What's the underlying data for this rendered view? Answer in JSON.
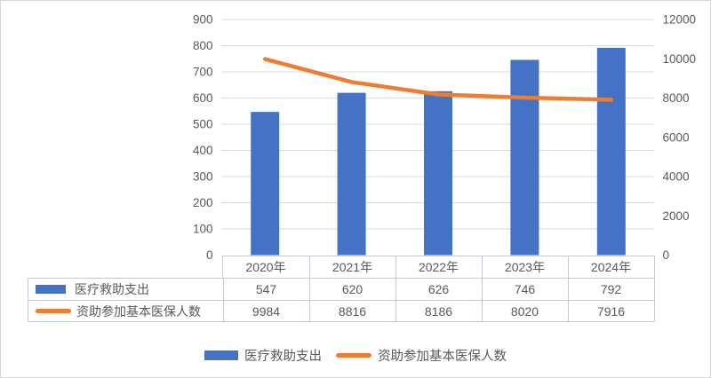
{
  "colors": {
    "bar": "#4472C4",
    "line": "#ED7D31",
    "grid": "#D9D9D9",
    "axis_text": "#595959",
    "table_text": "#595959",
    "table_border": "#c4cad3",
    "page_border": "#d7d7d7",
    "background": "#ffffff"
  },
  "chart_data": {
    "type": "combo-bar-line",
    "categories": [
      "2020年",
      "2021年",
      "2022年",
      "2023年",
      "2024年"
    ],
    "series": [
      {
        "name": "医疗救助支出",
        "type": "bar",
        "axis": "left",
        "values": [
          547,
          620,
          626,
          746,
          792
        ]
      },
      {
        "name": "资助参加基本医保人数",
        "type": "line",
        "axis": "right",
        "values": [
          9984,
          8816,
          8186,
          8020,
          7916
        ]
      }
    ],
    "left_axis": {
      "min": 0,
      "max": 900,
      "step": 100,
      "ticks": [
        "0",
        "100",
        "200",
        "300",
        "400",
        "500",
        "600",
        "700",
        "800",
        "900"
      ]
    },
    "right_axis": {
      "min": 0,
      "max": 12000,
      "step": 2000,
      "ticks": [
        "0",
        "2000",
        "4000",
        "6000",
        "8000",
        "10000",
        "12000"
      ]
    },
    "grid": true,
    "legend_position": "bottom",
    "data_table_shown": true
  }
}
